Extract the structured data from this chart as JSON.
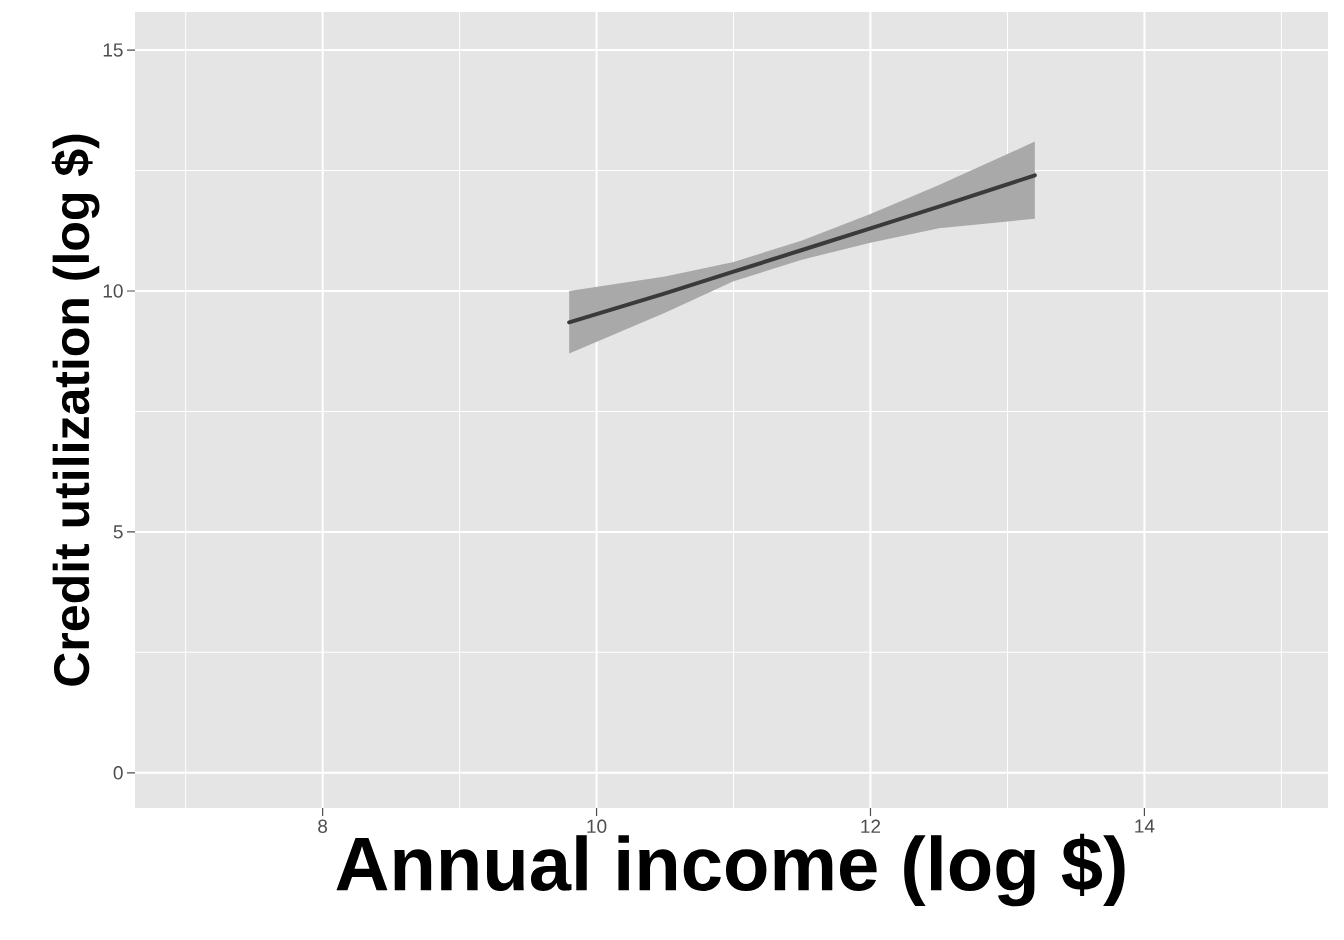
{
  "chart_data": {
    "type": "line",
    "xlabel": "Annual income (log $)",
    "ylabel": "Credit utilization (log $)",
    "xlim": [
      6.63,
      15.34
    ],
    "ylim": [
      -0.73,
      15.79
    ],
    "xticks": [
      8,
      10,
      12,
      14
    ],
    "yticks": [
      0,
      5,
      10,
      15
    ],
    "grid": true,
    "series": [
      {
        "color": "#3a3a3a",
        "x": [
          9.8,
          10.5,
          11,
          11.5,
          12,
          12.5,
          13.2
        ],
        "values": [
          9.35,
          9.95,
          10.4,
          10.85,
          11.3,
          11.75,
          12.4
        ],
        "lower": [
          8.7,
          9.55,
          10.2,
          10.65,
          11.0,
          11.3,
          11.5
        ],
        "upper": [
          10.0,
          10.3,
          10.6,
          11.05,
          11.6,
          12.2,
          13.1
        ]
      }
    ]
  }
}
